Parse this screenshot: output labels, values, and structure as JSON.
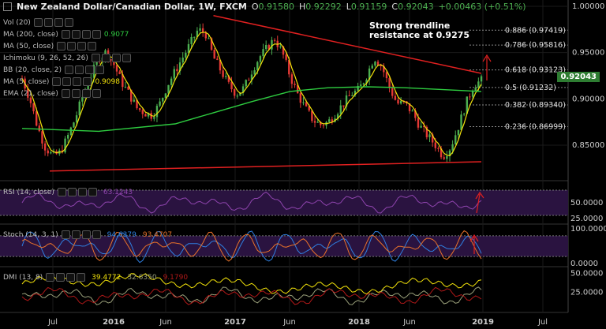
{
  "header": {
    "title": "New Zealand Dollar/Canadian Dollar, 1W, FXCM",
    "open_label": "O",
    "open": "0.91580",
    "high_label": "H",
    "high": "0.92292",
    "low_label": "L",
    "low": "0.91159",
    "close_label": "C",
    "close": "0.92043",
    "change": "+0.00463 (+0.51%)"
  },
  "indicators": [
    {
      "label": "Vol (20)",
      "value": ""
    },
    {
      "label": "MA (200, close)",
      "value": "0.9077"
    },
    {
      "label": "MA (50, close)",
      "value": ""
    },
    {
      "label": "Ichimoku (9, 26, 52, 26)",
      "value": ""
    },
    {
      "label": "BB (20, close, 2)",
      "value": ""
    },
    {
      "label": "MA (5, close)",
      "value": "0.9098"
    },
    {
      "label": "EMA (21, close)",
      "value": ""
    }
  ],
  "annotation": {
    "line1": "Strong trendline",
    "line2": "resistance at 0.9275"
  },
  "current_price": "0.92043",
  "colors": {
    "up": "#4caf50",
    "down": "#e53935",
    "ma200": "#2ecc40",
    "ma5": "#f1e10a",
    "trend": "#e02020",
    "rsi": "#8e44ad",
    "stoch_k": "#2f7fe0",
    "stoch_d": "#e8722a",
    "dmi_adx": "#f1e10a",
    "dmi_plus": "#9aa07a",
    "dmi_minus": "#b01818",
    "fib": "#888888"
  },
  "chart_data": [
    {
      "type": "candlestick",
      "title": "New Zealand Dollar/Canadian Dollar, 1W, FXCM",
      "x_ticks": [
        "Jul",
        "2016",
        "Jun",
        "2017",
        "Jun",
        "2018",
        "Jun",
        "2019",
        "Jul"
      ],
      "y_ticks": [
        "1.00000",
        "0.95000",
        "0.90000",
        "0.85000"
      ],
      "ylim": [
        0.815,
        1.0
      ],
      "close_path": [
        [
          0,
          0.922
        ],
        [
          4,
          0.9
        ],
        [
          8,
          0.87
        ],
        [
          12,
          0.848
        ],
        [
          16,
          0.838
        ],
        [
          20,
          0.842
        ],
        [
          24,
          0.86
        ],
        [
          28,
          0.88
        ],
        [
          32,
          0.905
        ],
        [
          36,
          0.925
        ],
        [
          40,
          0.944
        ],
        [
          44,
          0.951
        ],
        [
          48,
          0.937
        ],
        [
          52,
          0.918
        ],
        [
          56,
          0.905
        ],
        [
          60,
          0.89
        ],
        [
          64,
          0.885
        ],
        [
          68,
          0.882
        ],
        [
          72,
          0.895
        ],
        [
          76,
          0.915
        ],
        [
          80,
          0.93
        ],
        [
          84,
          0.945
        ],
        [
          88,
          0.96
        ],
        [
          92,
          0.975
        ],
        [
          96,
          0.97
        ],
        [
          100,
          0.945
        ],
        [
          104,
          0.93
        ],
        [
          108,
          0.915
        ],
        [
          112,
          0.905
        ],
        [
          116,
          0.912
        ],
        [
          120,
          0.93
        ],
        [
          124,
          0.945
        ],
        [
          128,
          0.955
        ],
        [
          132,
          0.965
        ],
        [
          136,
          0.95
        ],
        [
          140,
          0.925
        ],
        [
          144,
          0.905
        ],
        [
          148,
          0.89
        ],
        [
          152,
          0.877
        ],
        [
          156,
          0.872
        ],
        [
          160,
          0.875
        ],
        [
          164,
          0.885
        ],
        [
          168,
          0.895
        ],
        [
          172,
          0.905
        ],
        [
          176,
          0.91
        ],
        [
          180,
          0.925
        ],
        [
          184,
          0.945
        ],
        [
          188,
          0.935
        ],
        [
          192,
          0.912
        ],
        [
          196,
          0.895
        ],
        [
          200,
          0.895
        ],
        [
          204,
          0.885
        ],
        [
          208,
          0.87
        ],
        [
          212,
          0.86
        ],
        [
          216,
          0.85
        ],
        [
          220,
          0.838
        ],
        [
          224,
          0.848
        ],
        [
          228,
          0.87
        ],
        [
          232,
          0.895
        ],
        [
          236,
          0.915
        ],
        [
          240,
          0.92
        ]
      ],
      "ma200_path": [
        [
          0,
          0.868
        ],
        [
          40,
          0.865
        ],
        [
          80,
          0.873
        ],
        [
          100,
          0.885
        ],
        [
          120,
          0.897
        ],
        [
          140,
          0.908
        ],
        [
          160,
          0.912
        ],
        [
          180,
          0.913
        ],
        [
          200,
          0.912
        ],
        [
          220,
          0.91
        ],
        [
          240,
          0.908
        ]
      ],
      "trendline_resistance": [
        [
          100,
          0.99
        ],
        [
          240,
          0.9275
        ]
      ],
      "trendline_support": [
        [
          0,
          0.822
        ],
        [
          240,
          0.832
        ]
      ],
      "fibonacci": [
        {
          "level": "0.886",
          "price": "0.97419"
        },
        {
          "level": "0.786",
          "price": "0.95816"
        },
        {
          "level": "0.618",
          "price": "0.93123"
        },
        {
          "level": "0.5",
          "price": "0.91232"
        },
        {
          "level": "0.382",
          "price": "0.89340"
        },
        {
          "level": "0.236",
          "price": "0.86999"
        }
      ]
    },
    {
      "type": "line",
      "title": "RSI (14, close)",
      "value": "63.1243",
      "y_ticks": [
        "50.0000",
        "25.0000"
      ],
      "ylim": [
        20,
        80
      ]
    },
    {
      "type": "line",
      "title": "Stoch (14, 3, 1)",
      "k_value": "94.6379",
      "d_value": "93.4707",
      "y_ticks": [
        "100.0000",
        "0.0000"
      ],
      "ylim": [
        -5,
        105
      ]
    },
    {
      "type": "line",
      "title": "DMI (13, 8)",
      "adx": "39.4772",
      "plus_di": "32.6350",
      "minus_di": "9.1790",
      "y_ticks": [
        "50.0000",
        "25.0000"
      ],
      "ylim": [
        0,
        55
      ]
    }
  ]
}
